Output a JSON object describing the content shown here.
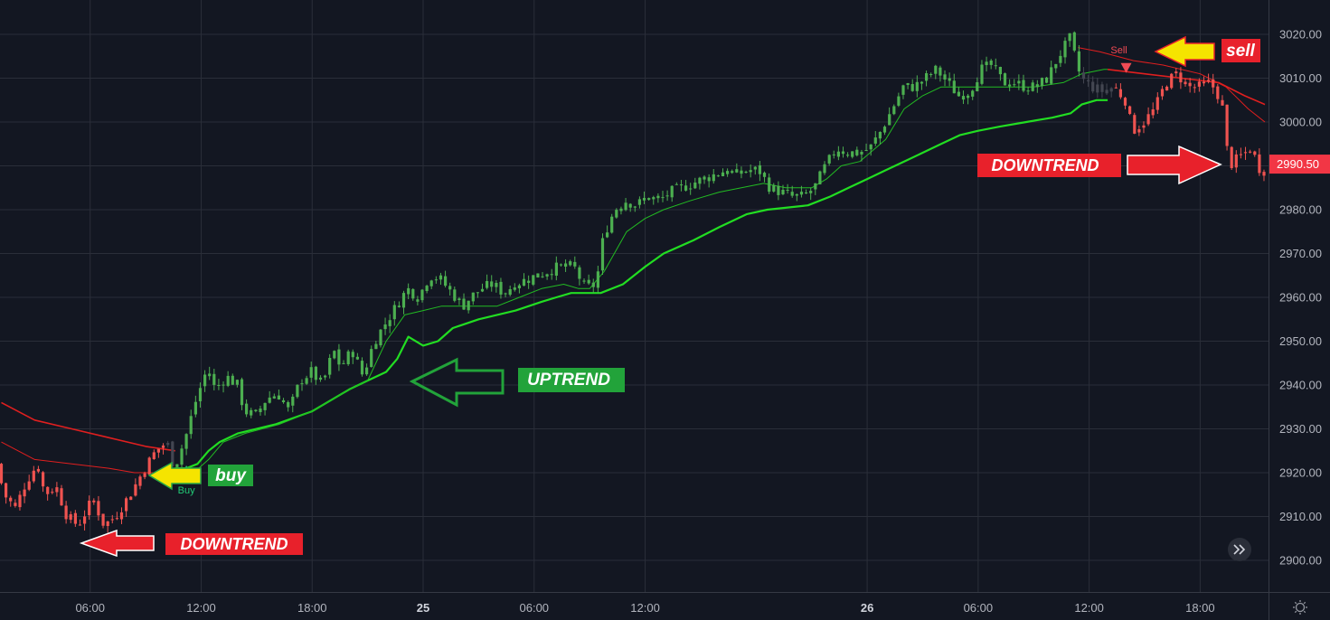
{
  "chart_data": {
    "type": "candlestick",
    "price_axis": {
      "ticks": [
        3020.0,
        3010.0,
        3000.0,
        2990.0,
        2980.0,
        2970.0,
        2960.0,
        2950.0,
        2940.0,
        2930.0,
        2920.0,
        2910.0,
        2900.0
      ],
      "ylim": [
        2897,
        3024
      ],
      "last_price": 2990.5,
      "last_price_label": "2990.50",
      "last_price_color": "#f23645"
    },
    "time_axis": {
      "labels": [
        {
          "label": "06:00",
          "t": 6
        },
        {
          "label": "12:00",
          "t": 12
        },
        {
          "label": "18:00",
          "t": 18
        },
        {
          "label": "25",
          "t": 24,
          "bold": true
        },
        {
          "label": "06:00",
          "t": 30
        },
        {
          "label": "12:00",
          "t": 36
        },
        {
          "label": "26",
          "t": 48,
          "bold": true
        },
        {
          "label": "06:00",
          "t": 54
        },
        {
          "label": "12:00",
          "t": 60
        },
        {
          "label": "18:00",
          "t": 66
        }
      ],
      "xlim": [
        1.2,
        69.5
      ],
      "unit": "hours"
    },
    "colors": {
      "background": "#131722",
      "grid": "#2a2e39",
      "up": "#26a69a",
      "up_candle": "#4caf50",
      "down_candle": "#ef5350",
      "neutral_candle": "#434651",
      "slow_line_up": "#22dd22",
      "fast_line_up": "#22bb22",
      "line_down": "#e01f1f",
      "arrow_red": "#e8212b",
      "arrow_yellow": "#f5e400",
      "label_green": "#22a33a"
    },
    "price_path": [
      [
        1.2,
        2922
      ],
      [
        1.6,
        2915
      ],
      [
        2.2,
        2912
      ],
      [
        2.8,
        2918
      ],
      [
        3.4,
        2922
      ],
      [
        3.8,
        2915
      ],
      [
        4.4,
        2917
      ],
      [
        5.0,
        2910
      ],
      [
        5.6,
        2908
      ],
      [
        6.4,
        2914
      ],
      [
        7.0,
        2908
      ],
      [
        7.6,
        2910
      ],
      [
        8.4,
        2915
      ],
      [
        9.2,
        2921
      ],
      [
        9.8,
        2925
      ],
      [
        10.4,
        2927
      ],
      [
        10.8,
        2921
      ],
      [
        11.4,
        2928
      ],
      [
        12.0,
        2937
      ],
      [
        12.6,
        2944
      ],
      [
        13.0,
        2939
      ],
      [
        13.6,
        2942
      ],
      [
        14.2,
        2940
      ],
      [
        14.6,
        2934
      ],
      [
        15.2,
        2933
      ],
      [
        15.8,
        2937
      ],
      [
        16.4,
        2938
      ],
      [
        17.0,
        2934
      ],
      [
        17.6,
        2941
      ],
      [
        18.2,
        2943
      ],
      [
        18.8,
        2940
      ],
      [
        19.4,
        2948
      ],
      [
        19.8,
        2944
      ],
      [
        20.4,
        2948
      ],
      [
        21.0,
        2942
      ],
      [
        21.6,
        2950
      ],
      [
        22.2,
        2954
      ],
      [
        22.8,
        2958
      ],
      [
        23.4,
        2962
      ],
      [
        24.0,
        2960
      ],
      [
        24.6,
        2965
      ],
      [
        25.2,
        2964
      ],
      [
        25.8,
        2961
      ],
      [
        26.4,
        2958
      ],
      [
        26.8,
        2960
      ],
      [
        27.4,
        2962
      ],
      [
        28.0,
        2963
      ],
      [
        28.6,
        2961
      ],
      [
        29.2,
        2963
      ],
      [
        29.8,
        2964
      ],
      [
        30.4,
        2965
      ],
      [
        31.0,
        2966
      ],
      [
        31.6,
        2967
      ],
      [
        32.4,
        2967
      ],
      [
        33.0,
        2962
      ],
      [
        33.6,
        2963
      ],
      [
        34.0,
        2974
      ],
      [
        34.6,
        2980
      ],
      [
        35.2,
        2982
      ],
      [
        35.8,
        2981
      ],
      [
        36.4,
        2983
      ],
      [
        37.0,
        2982
      ],
      [
        37.6,
        2984
      ],
      [
        38.2,
        2985
      ],
      [
        38.8,
        2986
      ],
      [
        39.4,
        2987
      ],
      [
        40.0,
        2988
      ],
      [
        40.6,
        2989
      ],
      [
        41.2,
        2988
      ],
      [
        41.8,
        2989
      ],
      [
        42.4,
        2989
      ],
      [
        43.0,
        2985
      ],
      [
        43.6,
        2984
      ],
      [
        44.2,
        2983
      ],
      [
        44.8,
        2983
      ],
      [
        45.4,
        2985
      ],
      [
        46.0,
        2990
      ],
      [
        46.6,
        2994
      ],
      [
        47.2,
        2993
      ],
      [
        47.8,
        2993
      ],
      [
        48.4,
        2994
      ],
      [
        49.0,
        2998
      ],
      [
        49.6,
        3003
      ],
      [
        50.2,
        3008
      ],
      [
        50.8,
        3008
      ],
      [
        51.4,
        3010
      ],
      [
        52.0,
        3012
      ],
      [
        52.6,
        3009
      ],
      [
        53.2,
        3006
      ],
      [
        53.8,
        3007
      ],
      [
        54.4,
        3012
      ],
      [
        55.0,
        3013
      ],
      [
        55.6,
        3009
      ],
      [
        56.2,
        3009
      ],
      [
        56.8,
        3008
      ],
      [
        57.4,
        3008
      ],
      [
        58.0,
        3010
      ],
      [
        58.6,
        3015
      ],
      [
        59.2,
        3019
      ],
      [
        59.8,
        3010
      ],
      [
        60.4,
        3008
      ],
      [
        61.0,
        3007
      ],
      [
        61.6,
        3008
      ],
      [
        62.2,
        3005
      ],
      [
        62.6,
        2998
      ],
      [
        63.2,
        3000
      ],
      [
        63.8,
        3003
      ],
      [
        64.4,
        3009
      ],
      [
        65.0,
        3011
      ],
      [
        65.6,
        3008
      ],
      [
        66.2,
        3008
      ],
      [
        66.8,
        3009
      ],
      [
        67.4,
        3005
      ],
      [
        67.8,
        2990
      ],
      [
        68.4,
        2992
      ],
      [
        69.0,
        2994
      ],
      [
        69.5,
        2989
      ]
    ],
    "series": [
      {
        "role": "slow-trail",
        "points_up": [
          [
            10.6,
            2921
          ],
          [
            11.2,
            2921
          ],
          [
            11.8,
            2922
          ],
          [
            12.4,
            2925
          ],
          [
            13.0,
            2927
          ],
          [
            14.0,
            2929
          ],
          [
            16.0,
            2931
          ],
          [
            18.0,
            2934
          ],
          [
            20.0,
            2939
          ],
          [
            21.0,
            2941
          ],
          [
            22.0,
            2943
          ],
          [
            22.6,
            2946
          ],
          [
            23.2,
            2951
          ],
          [
            24.0,
            2949
          ],
          [
            24.8,
            2950
          ],
          [
            25.6,
            2953
          ],
          [
            27.0,
            2955
          ],
          [
            29.0,
            2957
          ],
          [
            30.4,
            2959
          ],
          [
            31.2,
            2960
          ],
          [
            32.0,
            2961
          ],
          [
            33.6,
            2961
          ],
          [
            34.8,
            2963
          ],
          [
            36.0,
            2967
          ],
          [
            37.0,
            2970
          ],
          [
            38.6,
            2973
          ],
          [
            40.0,
            2976
          ],
          [
            41.5,
            2979
          ],
          [
            42.6,
            2980
          ],
          [
            44.8,
            2981
          ],
          [
            46.0,
            2983
          ],
          [
            47.0,
            2985
          ],
          [
            48.0,
            2987
          ],
          [
            49.0,
            2989
          ],
          [
            50.0,
            2991
          ],
          [
            51.0,
            2993
          ],
          [
            52.0,
            2995
          ],
          [
            53.0,
            2997
          ],
          [
            54.0,
            2998
          ],
          [
            55.2,
            2999
          ],
          [
            56.6,
            3000
          ],
          [
            58.0,
            3001
          ],
          [
            59.0,
            3002
          ],
          [
            59.6,
            3004
          ],
          [
            60.4,
            3005
          ],
          [
            61.0,
            3005
          ]
        ],
        "points_down": [
          [
            1.2,
            2936
          ],
          [
            3.0,
            2932
          ],
          [
            5.0,
            2930
          ],
          [
            7.0,
            2928
          ],
          [
            9.0,
            2926
          ],
          [
            10.6,
            2925
          ]
        ],
        "points_down_end": [
          [
            61.0,
            3012
          ],
          [
            63.0,
            3011
          ],
          [
            65.0,
            3010
          ],
          [
            67.0,
            3009
          ],
          [
            68.4,
            3006
          ],
          [
            69.5,
            3004
          ]
        ]
      },
      {
        "role": "fast-trail",
        "points_up": [
          [
            10.6,
            2920
          ],
          [
            11.6,
            2920
          ],
          [
            12.4,
            2923
          ],
          [
            13.2,
            2927
          ],
          [
            14.4,
            2929
          ],
          [
            16.2,
            2931
          ],
          [
            18.0,
            2934
          ],
          [
            20.0,
            2939
          ],
          [
            21.0,
            2941
          ],
          [
            22.0,
            2950
          ],
          [
            23.0,
            2956
          ],
          [
            24.0,
            2957
          ],
          [
            25.0,
            2958
          ],
          [
            27.0,
            2958
          ],
          [
            28.0,
            2958
          ],
          [
            29.2,
            2960
          ],
          [
            30.4,
            2962
          ],
          [
            31.6,
            2963
          ],
          [
            32.4,
            2962
          ],
          [
            33.0,
            2962
          ],
          [
            33.8,
            2966
          ],
          [
            35.0,
            2975
          ],
          [
            36.0,
            2978
          ],
          [
            37.0,
            2980
          ],
          [
            38.4,
            2982
          ],
          [
            40.0,
            2984
          ],
          [
            42.4,
            2986
          ],
          [
            43.6,
            2985
          ],
          [
            45.0,
            2985
          ],
          [
            45.8,
            2987
          ],
          [
            46.6,
            2990
          ],
          [
            47.6,
            2991
          ],
          [
            49.0,
            2996
          ],
          [
            50.0,
            3003
          ],
          [
            51.0,
            3006
          ],
          [
            52.0,
            3008
          ],
          [
            53.0,
            3008
          ],
          [
            55.0,
            3008
          ],
          [
            57.0,
            3008
          ],
          [
            58.6,
            3009
          ],
          [
            59.6,
            3011
          ],
          [
            60.8,
            3012
          ],
          [
            61.0,
            3012
          ]
        ],
        "points_down": [
          [
            1.2,
            2927
          ],
          [
            3.0,
            2923
          ],
          [
            5.0,
            2922
          ],
          [
            7.0,
            2921
          ],
          [
            8.4,
            2920
          ],
          [
            9.6,
            2920
          ],
          [
            10.6,
            2920
          ]
        ],
        "points_down_end": [
          [
            59.4,
            3017
          ],
          [
            60.6,
            3016
          ],
          [
            62.4,
            3014
          ],
          [
            64.0,
            3013
          ],
          [
            66.0,
            3011
          ],
          [
            67.4,
            3008
          ],
          [
            68.6,
            3003
          ],
          [
            69.5,
            3000
          ]
        ]
      }
    ],
    "signals": [
      {
        "label": "Buy",
        "t": 11.2,
        "price": 2920,
        "dir": "up",
        "color": "#22cc77"
      },
      {
        "label": "Sell",
        "t": 62.0,
        "price": 3012,
        "dir": "down",
        "color": "#f04b55"
      }
    ]
  },
  "annotations": {
    "downtrend_left": {
      "text": "DOWNTREND"
    },
    "buy": {
      "text": "buy"
    },
    "uptrend": {
      "text": "UPTREND"
    },
    "sell": {
      "text": "sell"
    },
    "downtrend_right": {
      "text": "DOWNTREND"
    }
  },
  "controls": {
    "scroll_to_realtime_icon": "double-chevron-right-icon",
    "settings_icon": "sun-gear-icon"
  }
}
